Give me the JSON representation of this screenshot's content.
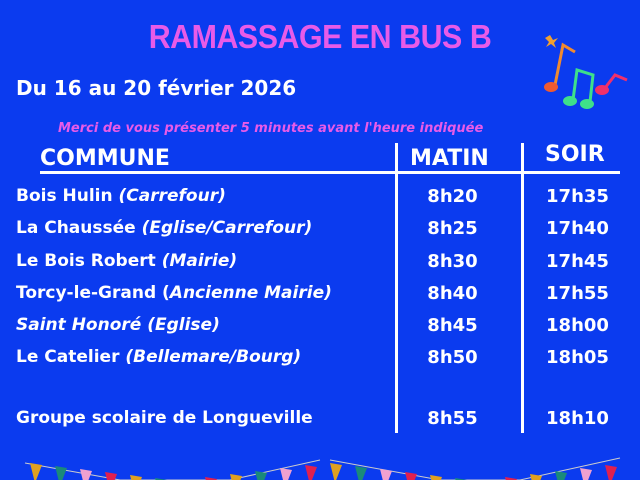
{
  "title": "RAMASSAGE EN BUS B",
  "dates": "Du 16 au 20 février 2026",
  "notice": "Merci de vous présenter 5 minutes avant l'heure indiquée",
  "headers": {
    "commune": "COMMUNE",
    "matin": "MATIN",
    "soir": "SOIR"
  },
  "rows": [
    {
      "name": "Bois Hulin",
      "detail": "(Carrefour)",
      "matin": "8h20",
      "soir": "17h35"
    },
    {
      "name": "La Chaussée",
      "detail": "(Eglise/Carrefour)",
      "matin": "8h25",
      "soir": "17h40"
    },
    {
      "name": "Le Bois Robert",
      "detail": "(Mairie)",
      "matin": "8h30",
      "soir": "17h45"
    },
    {
      "name": "Torcy-le-Grand (",
      "detail": "Ancienne Mairie)",
      "matin": "8h40",
      "soir": "17h55"
    },
    {
      "name": "",
      "detail": "Saint Honoré  (Eglise)",
      "matin": "8h45",
      "soir": "18h00"
    },
    {
      "name": "Le Catelier",
      "detail": "(Bellemare/Bourg)",
      "matin": "8h50",
      "soir": "18h05"
    },
    {
      "name": "Groupe scolaire de Longueville",
      "detail": "",
      "matin": "8h55",
      "soir": "18h10"
    }
  ],
  "colors": {
    "background": "#0b3bef",
    "accent": "#e85be8"
  }
}
